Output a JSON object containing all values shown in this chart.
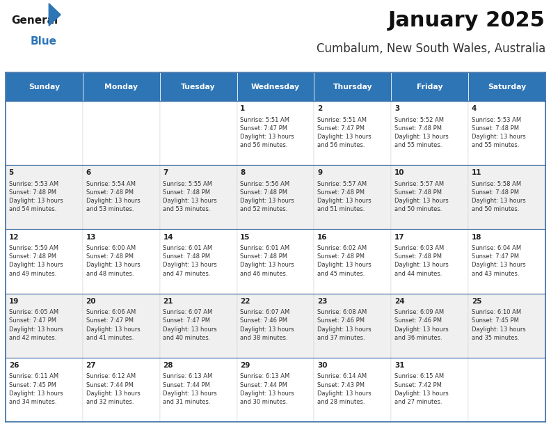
{
  "title": "January 2025",
  "subtitle": "Cumbalum, New South Wales, Australia",
  "header_color": "#2e75b6",
  "header_text_color": "#ffffff",
  "days_of_week": [
    "Sunday",
    "Monday",
    "Tuesday",
    "Wednesday",
    "Thursday",
    "Friday",
    "Saturday"
  ],
  "row_colors": [
    "#ffffff",
    "#f0f0f0"
  ],
  "separator_color": "#3a6ea5",
  "text_color": "#222222",
  "cell_text_color": "#333333",
  "cell_data": [
    [
      "",
      "",
      "",
      "1\nSunrise: 5:51 AM\nSunset: 7:47 PM\nDaylight: 13 hours\nand 56 minutes.",
      "2\nSunrise: 5:51 AM\nSunset: 7:47 PM\nDaylight: 13 hours\nand 56 minutes.",
      "3\nSunrise: 5:52 AM\nSunset: 7:48 PM\nDaylight: 13 hours\nand 55 minutes.",
      "4\nSunrise: 5:53 AM\nSunset: 7:48 PM\nDaylight: 13 hours\nand 55 minutes."
    ],
    [
      "5\nSunrise: 5:53 AM\nSunset: 7:48 PM\nDaylight: 13 hours\nand 54 minutes.",
      "6\nSunrise: 5:54 AM\nSunset: 7:48 PM\nDaylight: 13 hours\nand 53 minutes.",
      "7\nSunrise: 5:55 AM\nSunset: 7:48 PM\nDaylight: 13 hours\nand 53 minutes.",
      "8\nSunrise: 5:56 AM\nSunset: 7:48 PM\nDaylight: 13 hours\nand 52 minutes.",
      "9\nSunrise: 5:57 AM\nSunset: 7:48 PM\nDaylight: 13 hours\nand 51 minutes.",
      "10\nSunrise: 5:57 AM\nSunset: 7:48 PM\nDaylight: 13 hours\nand 50 minutes.",
      "11\nSunrise: 5:58 AM\nSunset: 7:48 PM\nDaylight: 13 hours\nand 50 minutes."
    ],
    [
      "12\nSunrise: 5:59 AM\nSunset: 7:48 PM\nDaylight: 13 hours\nand 49 minutes.",
      "13\nSunrise: 6:00 AM\nSunset: 7:48 PM\nDaylight: 13 hours\nand 48 minutes.",
      "14\nSunrise: 6:01 AM\nSunset: 7:48 PM\nDaylight: 13 hours\nand 47 minutes.",
      "15\nSunrise: 6:01 AM\nSunset: 7:48 PM\nDaylight: 13 hours\nand 46 minutes.",
      "16\nSunrise: 6:02 AM\nSunset: 7:48 PM\nDaylight: 13 hours\nand 45 minutes.",
      "17\nSunrise: 6:03 AM\nSunset: 7:48 PM\nDaylight: 13 hours\nand 44 minutes.",
      "18\nSunrise: 6:04 AM\nSunset: 7:47 PM\nDaylight: 13 hours\nand 43 minutes."
    ],
    [
      "19\nSunrise: 6:05 AM\nSunset: 7:47 PM\nDaylight: 13 hours\nand 42 minutes.",
      "20\nSunrise: 6:06 AM\nSunset: 7:47 PM\nDaylight: 13 hours\nand 41 minutes.",
      "21\nSunrise: 6:07 AM\nSunset: 7:47 PM\nDaylight: 13 hours\nand 40 minutes.",
      "22\nSunrise: 6:07 AM\nSunset: 7:46 PM\nDaylight: 13 hours\nand 38 minutes.",
      "23\nSunrise: 6:08 AM\nSunset: 7:46 PM\nDaylight: 13 hours\nand 37 minutes.",
      "24\nSunrise: 6:09 AM\nSunset: 7:46 PM\nDaylight: 13 hours\nand 36 minutes.",
      "25\nSunrise: 6:10 AM\nSunset: 7:45 PM\nDaylight: 13 hours\nand 35 minutes."
    ],
    [
      "26\nSunrise: 6:11 AM\nSunset: 7:45 PM\nDaylight: 13 hours\nand 34 minutes.",
      "27\nSunrise: 6:12 AM\nSunset: 7:44 PM\nDaylight: 13 hours\nand 32 minutes.",
      "28\nSunrise: 6:13 AM\nSunset: 7:44 PM\nDaylight: 13 hours\nand 31 minutes.",
      "29\nSunrise: 6:13 AM\nSunset: 7:44 PM\nDaylight: 13 hours\nand 30 minutes.",
      "30\nSunrise: 6:14 AM\nSunset: 7:43 PM\nDaylight: 13 hours\nand 28 minutes.",
      "31\nSunrise: 6:15 AM\nSunset: 7:42 PM\nDaylight: 13 hours\nand 27 minutes.",
      ""
    ]
  ],
  "figsize": [
    7.92,
    6.12
  ],
  "dpi": 100
}
